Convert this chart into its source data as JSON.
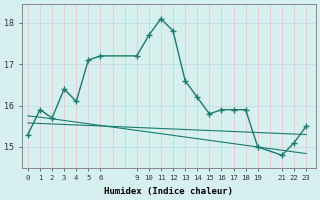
{
  "xlabel": "Humidex (Indice chaleur)",
  "bg_color": "#d6f0f0",
  "grid_color_v": "#e8c8c8",
  "grid_color_h": "#c8dede",
  "line_color": "#1a7a6e",
  "series1_x": [
    0,
    1,
    2,
    3,
    4,
    5,
    6,
    9,
    10,
    11,
    12,
    13,
    14,
    15,
    16,
    17,
    18,
    19,
    21,
    22,
    23
  ],
  "series1_y": [
    15.3,
    15.9,
    15.7,
    16.4,
    16.1,
    17.1,
    17.2,
    17.2,
    17.7,
    18.1,
    17.8,
    16.6,
    16.2,
    15.8,
    15.9,
    15.9,
    15.9,
    15.0,
    14.8,
    15.1,
    15.5
  ],
  "series2_x": [
    0,
    1,
    2,
    3,
    4,
    5,
    6,
    9,
    10,
    11,
    12,
    13,
    14,
    15,
    16,
    17,
    18,
    19,
    21,
    22,
    23
  ],
  "series2_y": [
    15.75,
    15.72,
    15.68,
    15.64,
    15.6,
    15.56,
    15.52,
    15.4,
    15.36,
    15.32,
    15.28,
    15.24,
    15.2,
    15.16,
    15.12,
    15.08,
    15.04,
    15.0,
    14.92,
    14.88,
    14.84
  ],
  "series3_x": [
    0,
    23
  ],
  "series3_y": [
    15.58,
    15.3
  ],
  "xtick_positions": [
    0,
    1,
    2,
    3,
    4,
    5,
    6,
    9,
    10,
    11,
    12,
    13,
    14,
    15,
    16,
    17,
    18,
    19,
    21,
    22,
    23
  ],
  "xtick_labels": [
    "0",
    "1",
    "2",
    "3",
    "4",
    "5",
    "6",
    "9",
    "10",
    "11",
    "12",
    "13",
    "14",
    "15",
    "16",
    "17",
    "18",
    "19",
    "21",
    "22",
    "23"
  ],
  "ytick_positions": [
    15,
    16,
    17,
    18
  ],
  "ytick_labels": [
    "15",
    "16",
    "17",
    "18"
  ],
  "ylim": [
    14.5,
    18.45
  ],
  "xlim": [
    -0.5,
    23.8
  ]
}
